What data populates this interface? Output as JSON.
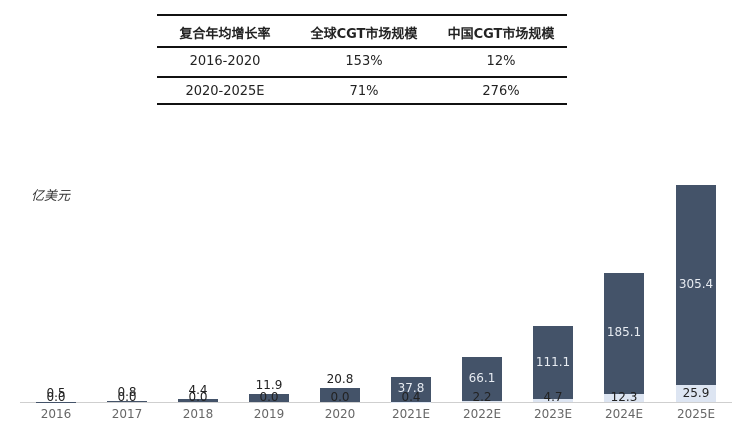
{
  "table": {
    "headers": [
      "复合年均增长率",
      "全球CGT市场规模",
      "中国CGT市场规模"
    ],
    "rows": [
      [
        "2016-2020",
        "153%",
        "12%"
      ],
      [
        "2020-2025E",
        "71%",
        "276%"
      ]
    ]
  },
  "chart": {
    "unit_label": "亿美元"
  },
  "chart_data": {
    "type": "bar",
    "stacked": true,
    "title": "",
    "xlabel": "",
    "ylabel": "亿美元",
    "categories": [
      "2016",
      "2017",
      "2018",
      "2019",
      "2020",
      "2021E",
      "2022E",
      "2023E",
      "2024E",
      "2025E"
    ],
    "series": [
      {
        "name": "全球CGT市场规模",
        "color": "#445369",
        "values": [
          0.5,
          0.8,
          4.4,
          11.9,
          20.8,
          37.8,
          66.1,
          111.1,
          185.1,
          305.4
        ]
      },
      {
        "name": "中国CGT市场规模",
        "color": "#dde5f2",
        "values": [
          0.0,
          0.0,
          0.0,
          0.0,
          0.0,
          0.4,
          2.2,
          4.7,
          12.3,
          25.9
        ]
      }
    ],
    "value_labels": {
      "global": [
        "0.5",
        "0.8",
        "4.4",
        "11.9",
        "20.8",
        "37.8",
        "66.1",
        "111.1",
        "185.1",
        "305.4"
      ],
      "china": [
        "0.0",
        "0.0",
        "0.0",
        "0.0",
        "0.0",
        "0.4",
        "2.2",
        "4.7",
        "12.3",
        "25.9"
      ]
    },
    "grid": false,
    "legend": "none"
  }
}
